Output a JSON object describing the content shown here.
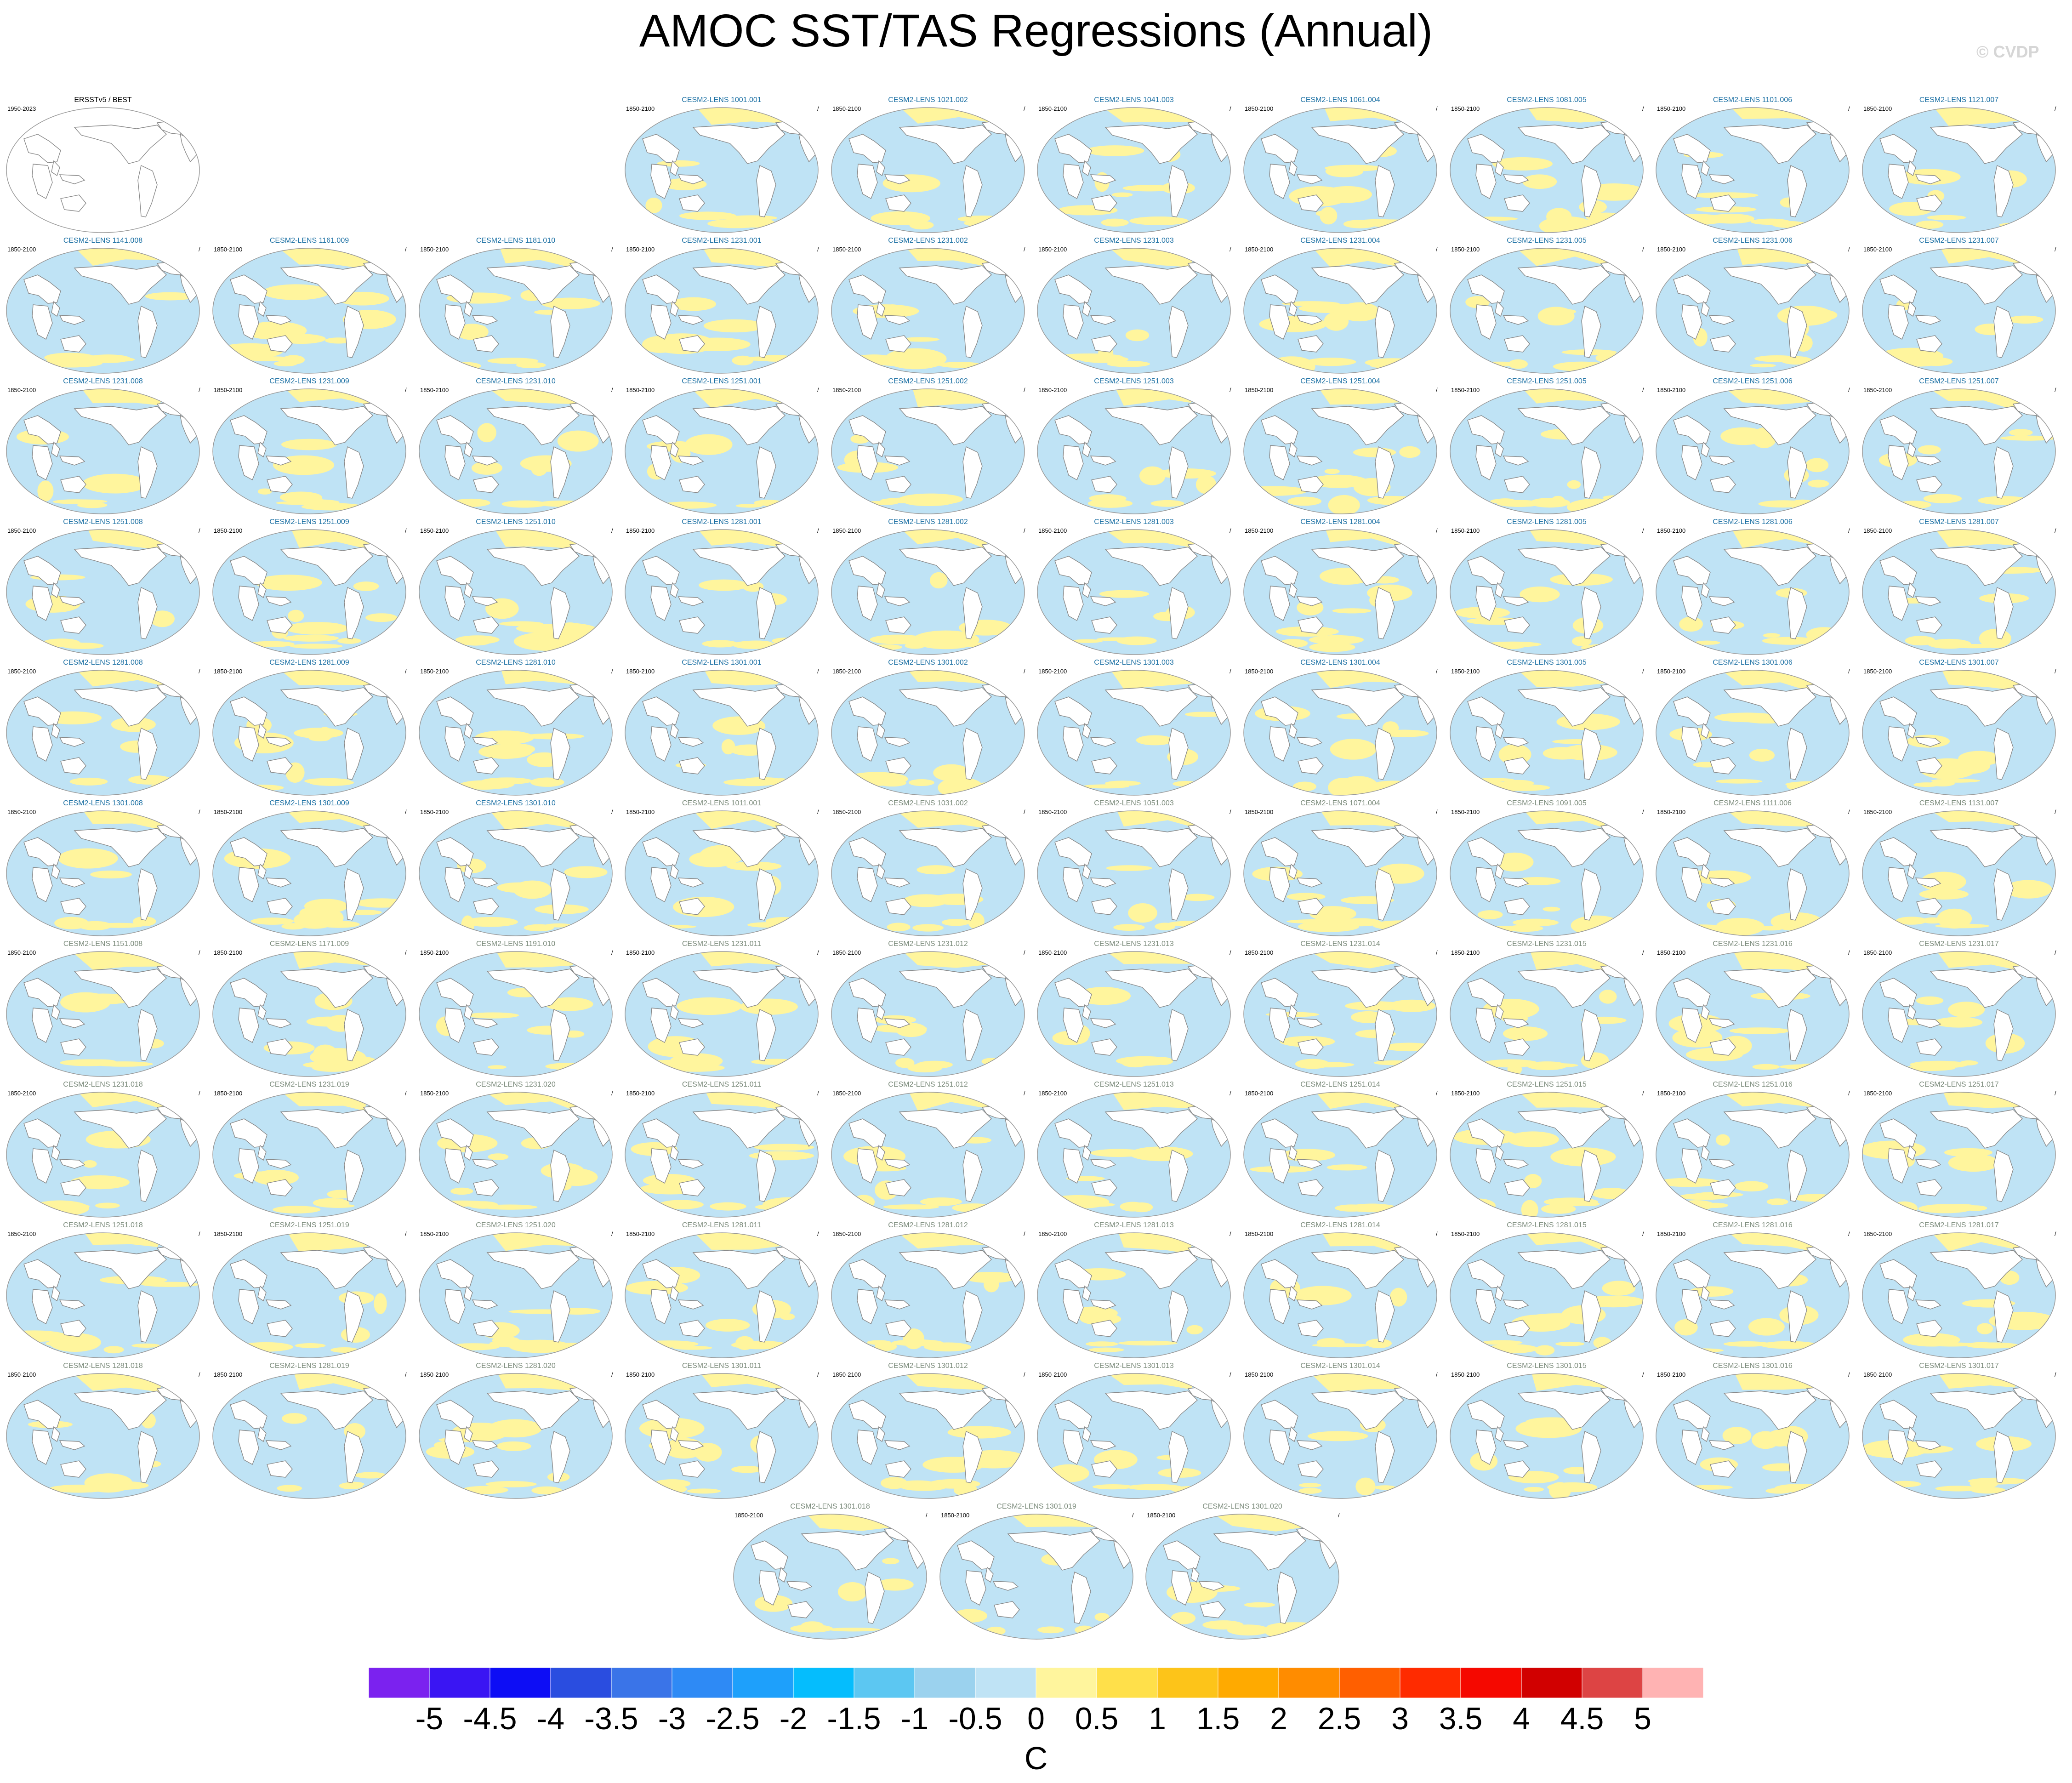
{
  "title": "AMOC SST/TAS Regressions (Annual)",
  "watermark": "© CVDP",
  "colors": {
    "land": "#ffffff",
    "ocean_default": "#bfe3f5",
    "positive_patch": "#fff59d",
    "coastline": "#888888",
    "title_group_a": "#1a6fa3",
    "title_group_b": "#7a8a7a"
  },
  "observations": {
    "label": "ERSSTv5 / BEST",
    "years": "1950-2023"
  },
  "ensemble_members": [
    "CESM2-LENS 1001.001",
    "CESM2-LENS 1021.002",
    "CESM2-LENS 1041.003",
    "CESM2-LENS 1061.004",
    "CESM2-LENS 1081.005",
    "CESM2-LENS 1101.006",
    "CESM2-LENS 1121.007",
    "CESM2-LENS 1141.008",
    "CESM2-LENS 1161.009",
    "CESM2-LENS 1181.010",
    "CESM2-LENS 1231.001",
    "CESM2-LENS 1231.002",
    "CESM2-LENS 1231.003",
    "CESM2-LENS 1231.004",
    "CESM2-LENS 1231.005",
    "CESM2-LENS 1231.006",
    "CESM2-LENS 1231.007",
    "CESM2-LENS 1231.008",
    "CESM2-LENS 1231.009",
    "CESM2-LENS 1231.010",
    "CESM2-LENS 1251.001",
    "CESM2-LENS 1251.002",
    "CESM2-LENS 1251.003",
    "CESM2-LENS 1251.004",
    "CESM2-LENS 1251.005",
    "CESM2-LENS 1251.006",
    "CESM2-LENS 1251.007",
    "CESM2-LENS 1251.008",
    "CESM2-LENS 1251.009",
    "CESM2-LENS 1251.010",
    "CESM2-LENS 1281.001",
    "CESM2-LENS 1281.002",
    "CESM2-LENS 1281.003",
    "CESM2-LENS 1281.004",
    "CESM2-LENS 1281.005",
    "CESM2-LENS 1281.006",
    "CESM2-LENS 1281.007",
    "CESM2-LENS 1281.008",
    "CESM2-LENS 1281.009",
    "CESM2-LENS 1281.010",
    "CESM2-LENS 1301.001",
    "CESM2-LENS 1301.002",
    "CESM2-LENS 1301.003",
    "CESM2-LENS 1301.004",
    "CESM2-LENS 1301.005",
    "CESM2-LENS 1301.006",
    "CESM2-LENS 1301.007",
    "CESM2-LENS 1301.008",
    "CESM2-LENS 1301.009",
    "CESM2-LENS 1301.010",
    "CESM2-LENS 1011.001",
    "CESM2-LENS 1031.002",
    "CESM2-LENS 1051.003",
    "CESM2-LENS 1071.004",
    "CESM2-LENS 1091.005",
    "CESM2-LENS 1111.006",
    "CESM2-LENS 1131.007",
    "CESM2-LENS 1151.008",
    "CESM2-LENS 1171.009",
    "CESM2-LENS 1191.010",
    "CESM2-LENS 1231.011",
    "CESM2-LENS 1231.012",
    "CESM2-LENS 1231.013",
    "CESM2-LENS 1231.014",
    "CESM2-LENS 1231.015",
    "CESM2-LENS 1231.016",
    "CESM2-LENS 1231.017",
    "CESM2-LENS 1231.018",
    "CESM2-LENS 1231.019",
    "CESM2-LENS 1231.020",
    "CESM2-LENS 1251.011",
    "CESM2-LENS 1251.012",
    "CESM2-LENS 1251.013",
    "CESM2-LENS 1251.014",
    "CESM2-LENS 1251.015",
    "CESM2-LENS 1251.016",
    "CESM2-LENS 1251.017",
    "CESM2-LENS 1251.018",
    "CESM2-LENS 1251.019",
    "CESM2-LENS 1251.020",
    "CESM2-LENS 1281.011",
    "CESM2-LENS 1281.012",
    "CESM2-LENS 1281.013",
    "CESM2-LENS 1281.014",
    "CESM2-LENS 1281.015",
    "CESM2-LENS 1281.016",
    "CESM2-LENS 1281.017",
    "CESM2-LENS 1281.018",
    "CESM2-LENS 1281.019",
    "CESM2-LENS 1281.020",
    "CESM2-LENS 1301.011",
    "CESM2-LENS 1301.012",
    "CESM2-LENS 1301.013",
    "CESM2-LENS 1301.014",
    "CESM2-LENS 1301.015",
    "CESM2-LENS 1301.016",
    "CESM2-LENS 1301.017",
    "CESM2-LENS 1301.018",
    "CESM2-LENS 1301.019",
    "CESM2-LENS 1301.020"
  ],
  "member_years": "1850-2100",
  "member_separator": "/",
  "colorbar": {
    "units": "C",
    "labels": [
      "-5",
      "-4.5",
      "-4",
      "-3.5",
      "-3",
      "-2.5",
      "-2",
      "-1.5",
      "-1",
      "-0.5",
      "0",
      "0.5",
      "1",
      "1.5",
      "2",
      "2.5",
      "3",
      "3.5",
      "4",
      "4.5",
      "5"
    ],
    "colors": [
      "#7b22ef",
      "#3a15f3",
      "#0d0df5",
      "#2a4de0",
      "#3a74e8",
      "#2e8af5",
      "#1ea0fb",
      "#05bdfd",
      "#5cc7f2",
      "#9bd2ee",
      "#bfe3f5",
      "#fff59d",
      "#ffe04a",
      "#fdc419",
      "#ffaa00",
      "#ff8c00",
      "#ff5f00",
      "#ff2b00",
      "#f50800",
      "#d10000",
      "#dd4444",
      "#ffb3b3"
    ]
  }
}
